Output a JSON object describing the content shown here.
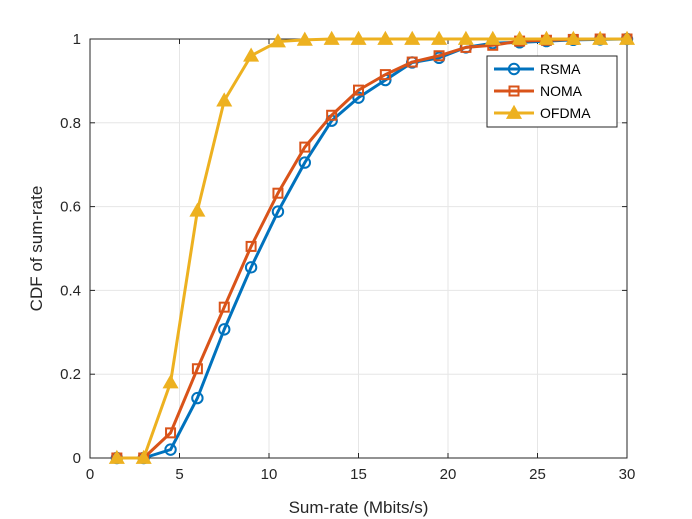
{
  "chart_data": {
    "type": "line",
    "title": "",
    "xlabel": "Sum-rate (Mbits/s)",
    "ylabel": "CDF of sum-rate",
    "xlim": [
      0,
      30
    ],
    "ylim": [
      0,
      1
    ],
    "xticks": [
      0,
      5,
      10,
      15,
      20,
      25,
      30
    ],
    "yticks": [
      0,
      0.2,
      0.4,
      0.6,
      0.8,
      1
    ],
    "xtick_labels": [
      "0",
      "5",
      "10",
      "15",
      "20",
      "25",
      "30"
    ],
    "ytick_labels": [
      "0",
      "0.2",
      "0.4",
      "0.6",
      "0.8",
      "1"
    ],
    "grid": true,
    "legend_position": "top-right",
    "x": [
      1.5,
      3,
      4.5,
      6,
      7.5,
      9,
      10.5,
      12,
      13.5,
      15,
      16.5,
      18,
      19.5,
      21,
      22.5,
      24,
      25.5,
      27,
      28.5,
      30
    ],
    "series": [
      {
        "name": "RSMA",
        "color": "#0072BD",
        "marker": "circle",
        "values": [
          0,
          0,
          0.02,
          0.143,
          0.307,
          0.455,
          0.588,
          0.705,
          0.805,
          0.86,
          0.902,
          0.944,
          0.955,
          0.98,
          0.99,
          0.992,
          0.995,
          0.998,
          0.999,
          1.0
        ]
      },
      {
        "name": "NOMA",
        "color": "#D95319",
        "marker": "square",
        "values": [
          0,
          0,
          0.06,
          0.213,
          0.36,
          0.505,
          0.632,
          0.742,
          0.818,
          0.878,
          0.915,
          0.945,
          0.96,
          0.98,
          0.985,
          0.995,
          0.997,
          0.999,
          1.0,
          1.0
        ]
      },
      {
        "name": "OFDMA",
        "color": "#EDB120",
        "marker": "triangle",
        "values": [
          0,
          0,
          0.18,
          0.59,
          0.853,
          0.96,
          0.994,
          0.998,
          1.0,
          1.0,
          1.0,
          1.0,
          1.0,
          1.0,
          1.0,
          1.0,
          1.0,
          1.0,
          1.0,
          1.0
        ]
      }
    ]
  }
}
